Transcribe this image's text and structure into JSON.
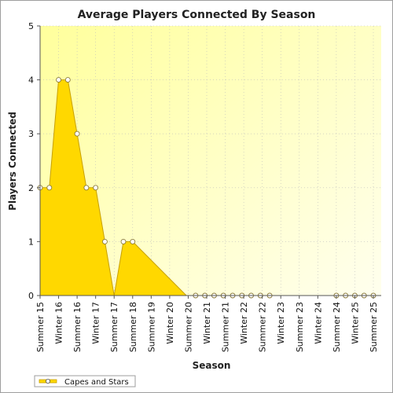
{
  "chart_data": {
    "type": "area",
    "title": "Average Players Connected By Season",
    "xlabel": "Season",
    "ylabel": "Players Connected",
    "ylim": [
      0,
      5
    ],
    "yticks": [
      "0",
      "1",
      "2",
      "3",
      "4",
      "5"
    ],
    "grid": true,
    "legend_position": "bottom-left",
    "categories": [
      "Summer 15",
      "Winter 16",
      "Summer 16",
      "Winter 17",
      "Summer 17",
      "Summer 18",
      "Summer 19",
      "Winter 20",
      "Summer 20",
      "Winter 21",
      "Summer 21",
      "Winter 22",
      "Summer 22",
      "Winter 23",
      "Summer 23",
      "Winter 24",
      "Summer 24",
      "Winter 25",
      "Summer 25"
    ],
    "series": [
      {
        "name": "Capes and Stars",
        "color": "#ffd800",
        "line_color": "#c8a000",
        "x": [
          0.0,
          0.5,
          1.0,
          1.5,
          2.0,
          2.5,
          3.0,
          3.5,
          4.0,
          4.5,
          5.0,
          7.9,
          8.4,
          8.9,
          9.4,
          9.9,
          10.4,
          10.9,
          11.4,
          11.9,
          12.4,
          16.0,
          16.5,
          17.0,
          17.5,
          18.0
        ],
        "values": [
          2,
          2,
          4,
          4,
          3,
          2,
          2,
          1,
          0,
          1,
          1,
          0,
          0,
          0,
          0,
          0,
          0,
          0,
          0,
          0,
          0,
          0,
          0,
          0,
          0,
          0
        ],
        "markers": [
          true,
          true,
          true,
          true,
          true,
          true,
          true,
          true,
          false,
          true,
          true,
          false,
          true,
          true,
          true,
          true,
          true,
          true,
          true,
          true,
          true,
          true,
          true,
          true,
          true,
          true
        ]
      }
    ]
  }
}
